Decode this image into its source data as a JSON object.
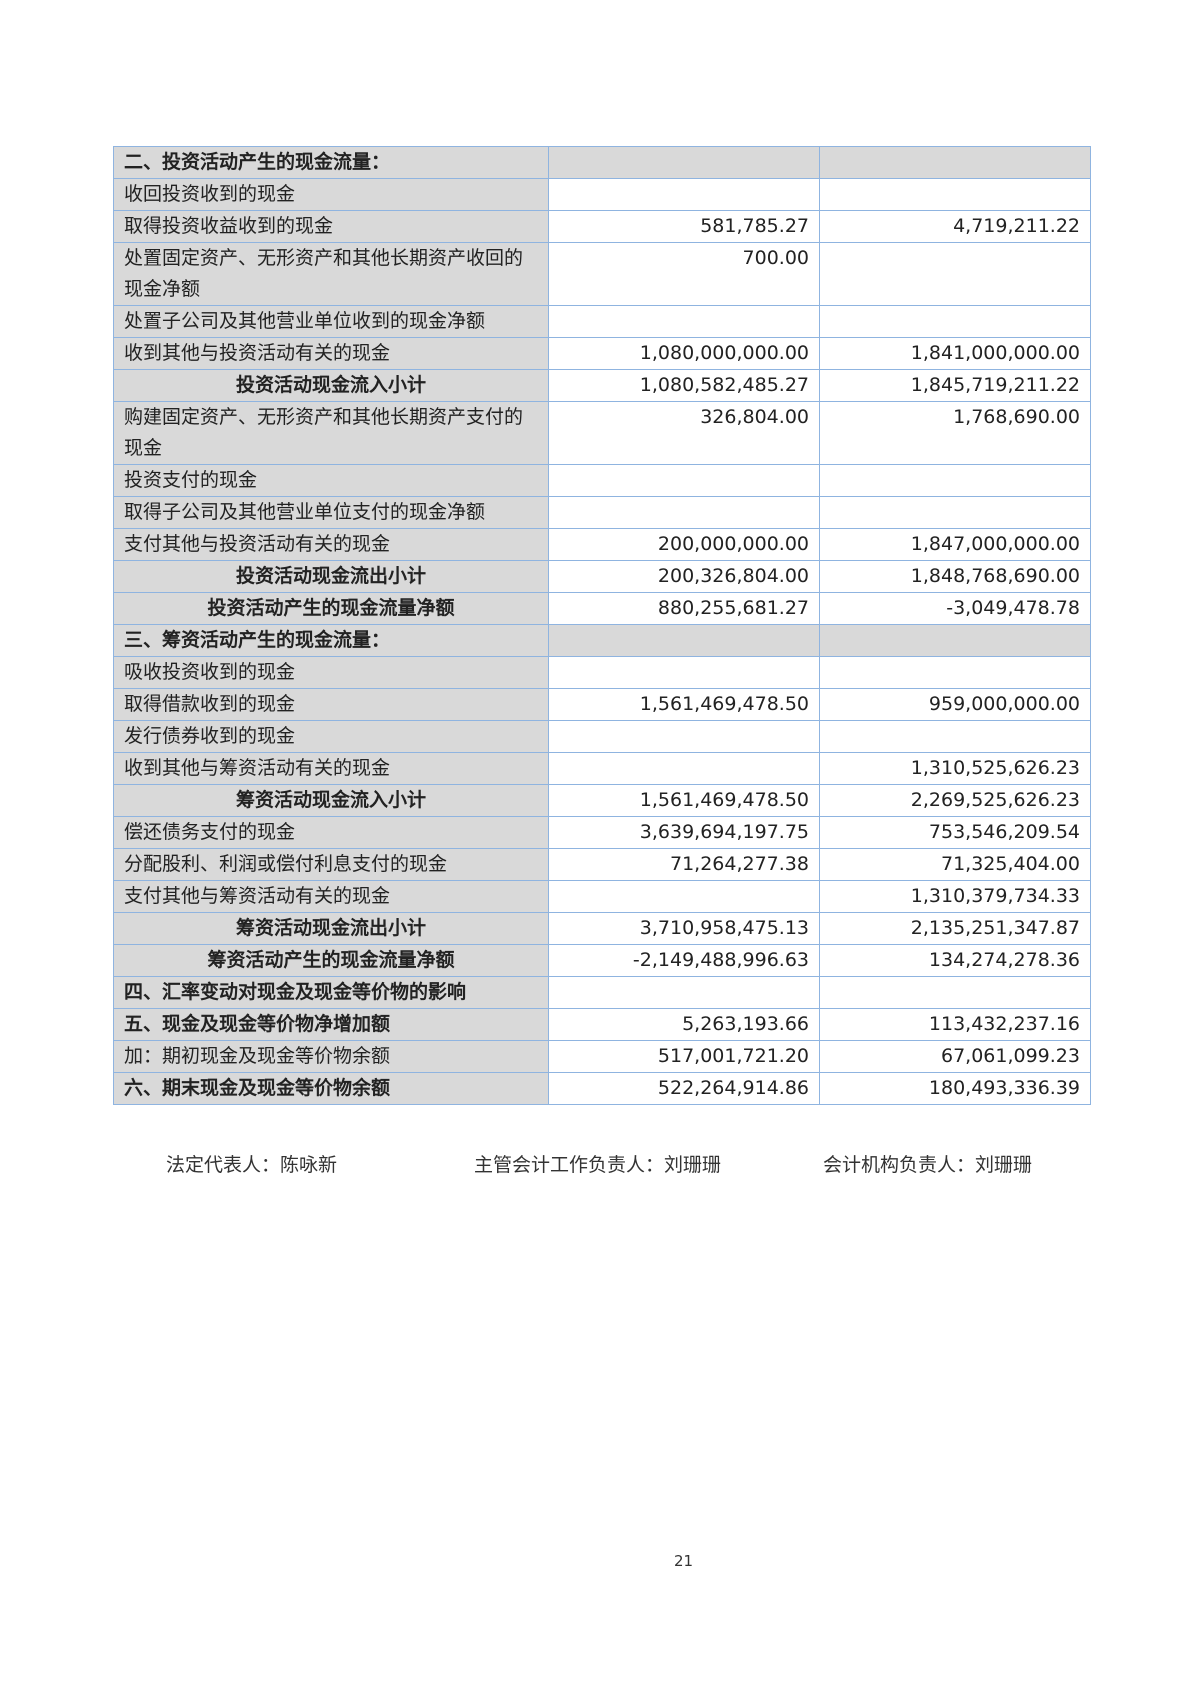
{
  "rows": [
    {
      "label": "二、投资活动产生的现金流量：",
      "cur": "",
      "prev": "",
      "kind": "sec"
    },
    {
      "label": "收回投资收到的现金",
      "cur": "",
      "prev": "",
      "kind": ""
    },
    {
      "label": "取得投资收益收到的现金",
      "cur": "581,785.27",
      "prev": "4,719,211.22",
      "kind": ""
    },
    {
      "label": "处置固定资产、无形资产和其他长期资产收回的现金净额",
      "cur": "700.00",
      "prev": "",
      "kind": ""
    },
    {
      "label": "处置子公司及其他营业单位收到的现金净额",
      "cur": "",
      "prev": "",
      "kind": ""
    },
    {
      "label": "收到其他与投资活动有关的现金",
      "cur": "1,080,000,000.00",
      "prev": "1,841,000,000.00",
      "kind": ""
    },
    {
      "label": "投资活动现金流入小计",
      "cur": "1,080,582,485.27",
      "prev": "1,845,719,211.22",
      "kind": "sub"
    },
    {
      "label": "购建固定资产、无形资产和其他长期资产支付的现金",
      "cur": "326,804.00",
      "prev": "1,768,690.00",
      "kind": ""
    },
    {
      "label": "投资支付的现金",
      "cur": "",
      "prev": "",
      "kind": ""
    },
    {
      "label": "取得子公司及其他营业单位支付的现金净额",
      "cur": "",
      "prev": "",
      "kind": ""
    },
    {
      "label": "支付其他与投资活动有关的现金",
      "cur": "200,000,000.00",
      "prev": "1,847,000,000.00",
      "kind": ""
    },
    {
      "label": "投资活动现金流出小计",
      "cur": "200,326,804.00",
      "prev": "1,848,768,690.00",
      "kind": "sub"
    },
    {
      "label": "投资活动产生的现金流量净额",
      "cur": "880,255,681.27",
      "prev": "-3,049,478.78",
      "kind": "sub"
    },
    {
      "label": "三、筹资活动产生的现金流量：",
      "cur": "",
      "prev": "",
      "kind": "sec"
    },
    {
      "label": "吸收投资收到的现金",
      "cur": "",
      "prev": "",
      "kind": ""
    },
    {
      "label": "取得借款收到的现金",
      "cur": "1,561,469,478.50",
      "prev": "959,000,000.00",
      "kind": ""
    },
    {
      "label": "发行债券收到的现金",
      "cur": "",
      "prev": "",
      "kind": ""
    },
    {
      "label": "收到其他与筹资活动有关的现金",
      "cur": "",
      "prev": "1,310,525,626.23",
      "kind": ""
    },
    {
      "label": "筹资活动现金流入小计",
      "cur": "1,561,469,478.50",
      "prev": "2,269,525,626.23",
      "kind": "sub"
    },
    {
      "label": "偿还债务支付的现金",
      "cur": "3,639,694,197.75",
      "prev": "753,546,209.54",
      "kind": ""
    },
    {
      "label": "分配股利、利润或偿付利息支付的现金",
      "cur": "71,264,277.38",
      "prev": "71,325,404.00",
      "kind": ""
    },
    {
      "label": "支付其他与筹资活动有关的现金",
      "cur": "",
      "prev": "1,310,379,734.33",
      "kind": ""
    },
    {
      "label": "筹资活动现金流出小计",
      "cur": "3,710,958,475.13",
      "prev": "2,135,251,347.87",
      "kind": "sub"
    },
    {
      "label": "筹资活动产生的现金流量净额",
      "cur": "-2,149,488,996.63",
      "prev": "134,274,278.36",
      "kind": "sub"
    },
    {
      "label": "四、汇率变动对现金及现金等价物的影响",
      "cur": "",
      "prev": "",
      "kind": "tot"
    },
    {
      "label": "五、现金及现金等价物净增加额",
      "cur": "5,263,193.66",
      "prev": "113,432,237.16",
      "kind": "tot"
    },
    {
      "label": "加：期初现金及现金等价物余额",
      "cur": "517,001,721.20",
      "prev": "67,061,099.23",
      "kind": ""
    },
    {
      "label": "六、期末现金及现金等价物余额",
      "cur": "522,264,914.86",
      "prev": "180,493,336.39",
      "kind": "tot"
    }
  ],
  "signatures": {
    "legal_rep": "法定代表人：陈咏新",
    "accounting_head": "主管会计工作负责人：刘珊珊",
    "accounting_org_head": "会计机构负责人：刘珊珊"
  },
  "page_number": "21",
  "colors": {
    "border": "#8fb4e0",
    "label_bg": "#d9d9d9"
  }
}
